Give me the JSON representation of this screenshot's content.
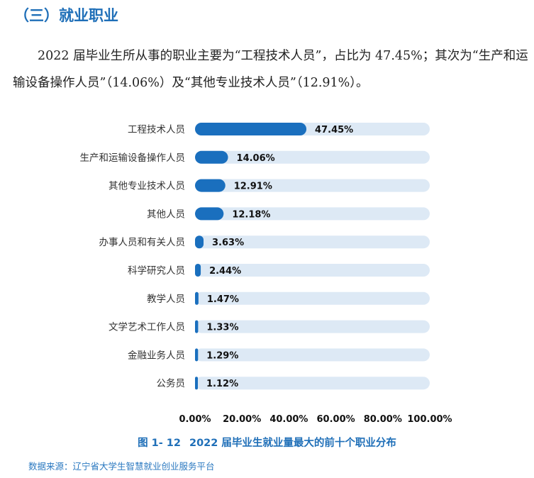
{
  "section": {
    "title": "（三）就业职业"
  },
  "paragraph": "2022 届毕业生所从事的职业主要为“工程技术人员”，占比为 47.45%；其次为“生产和运输设备操作人员”（14.06%）及“其他专业技术人员”（12.91%）。",
  "figure": {
    "number": "图 1- 12",
    "title": "2022 届毕业生就业量最大的前十个职业分布",
    "source": "数据来源：辽宁省大学生智慧就业创业服务平台"
  },
  "chart_data": {
    "type": "bar",
    "orientation": "horizontal",
    "categories": [
      "工程技术人员",
      "生产和运输设备操作人员",
      "其他专业技术人员",
      "其他人员",
      "办事人员和有关人员",
      "科学研究人员",
      "教学人员",
      "文学艺术工作人员",
      "金融业务人员",
      "公务员"
    ],
    "values": [
      47.45,
      14.06,
      12.91,
      12.18,
      3.63,
      2.44,
      1.47,
      1.33,
      1.29,
      1.12
    ],
    "value_labels": [
      "47.45%",
      "14.06%",
      "12.91%",
      "12.18%",
      "3.63%",
      "2.44%",
      "1.47%",
      "1.33%",
      "1.29%",
      "1.12%"
    ],
    "xlim": [
      0,
      100
    ],
    "xticks": [
      "0.00%",
      "20.00%",
      "40.00%",
      "60.00%",
      "80.00%",
      "100.00%"
    ],
    "grid": false,
    "colors": {
      "bar": "#1a6fbe",
      "track": "#dde9f5",
      "tick_text": "#111111"
    }
  }
}
